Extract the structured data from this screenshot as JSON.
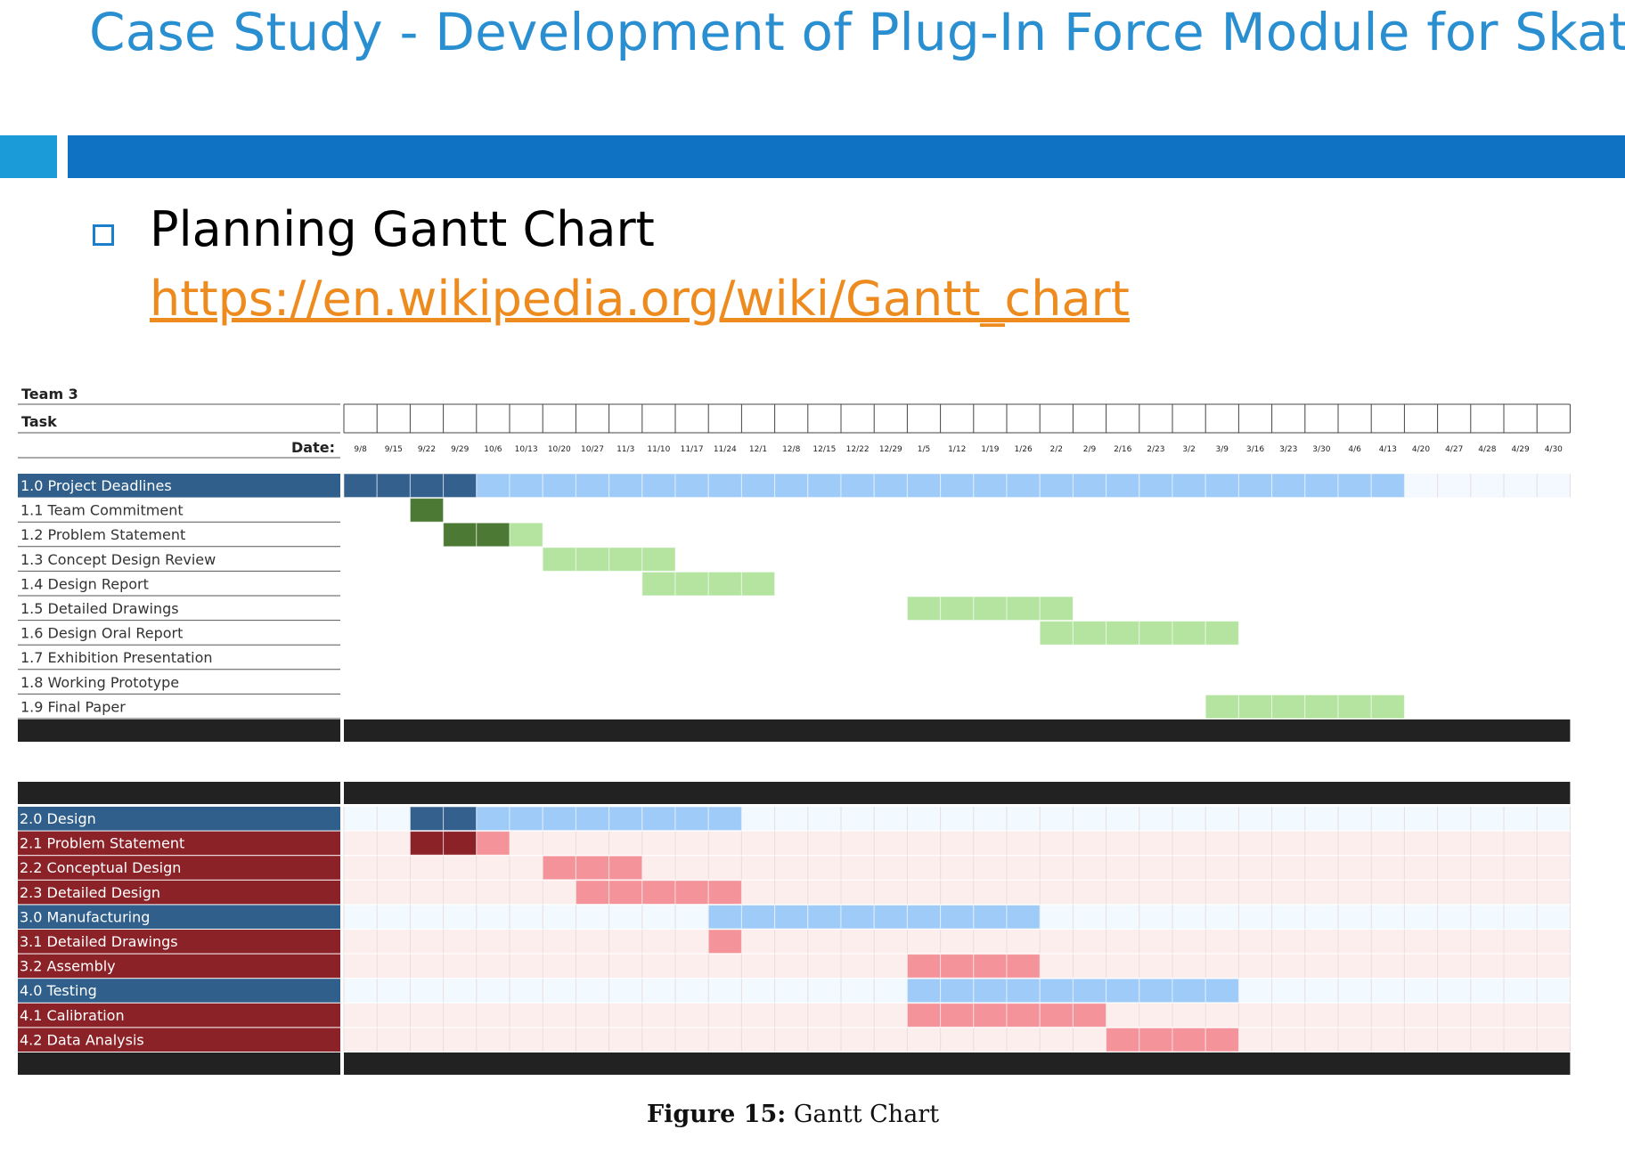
{
  "slide": {
    "title": "Case Study - Development of Plug-In Force Module for Skates",
    "bullet_heading": "Planning Gantt Chart",
    "bullet_link": "https://en.wikipedia.org/wiki/Gantt_chart"
  },
  "caption": {
    "label": "Figure 15:",
    "text": "Gantt Chart"
  },
  "colors": {
    "slide_title": "#2a8fd0",
    "band_light": "#1b9bd7",
    "band_dark": "#1072c2",
    "link": "#ee8b1f",
    "summary_label_bg": "#2f5f8a",
    "summary_done": "#34608e",
    "summary_planned": "#9ecbf7",
    "task_done_green": "#4c7a34",
    "task_planned_green": "#b4e4a0",
    "task_label_red": "#8b2228",
    "task_done_red": "#8b2228",
    "task_planned_red": "#f4939a",
    "separator": "#222222"
  },
  "chart_data": {
    "type": "gantt",
    "team": "Team 3",
    "task_header": "Task",
    "date_header": "Date:",
    "dates": [
      "9/8",
      "9/15",
      "9/22",
      "9/29",
      "10/6",
      "10/13",
      "10/20",
      "10/27",
      "11/3",
      "11/10",
      "11/17",
      "11/24",
      "12/1",
      "12/8",
      "12/15",
      "12/22",
      "12/29",
      "1/5",
      "1/12",
      "1/19",
      "1/26",
      "2/2",
      "2/9",
      "2/16",
      "2/23",
      "3/2",
      "3/9",
      "3/16",
      "3/23",
      "3/30",
      "4/6",
      "4/13",
      "4/20",
      "4/27",
      "4/28",
      "4/29",
      "4/30"
    ],
    "sections": [
      {
        "rows": [
          {
            "label": "1.0 Project Deadlines",
            "kind": "summary",
            "done": [
              "9/8",
              "9/29"
            ],
            "planned": [
              "10/6",
              "4/13"
            ]
          },
          {
            "label": "1.1 Team Commitment",
            "kind": "task",
            "done": [
              "9/22",
              "9/22"
            ]
          },
          {
            "label": "1.2 Problem Statement",
            "kind": "task",
            "done": [
              "9/29",
              "10/6"
            ],
            "planned": [
              "10/13",
              "10/13"
            ]
          },
          {
            "label": "1.3 Concept Design Review",
            "kind": "task",
            "planned": [
              "10/20",
              "11/10"
            ]
          },
          {
            "label": "1.4 Design Report",
            "kind": "task",
            "planned": [
              "11/10",
              "12/1"
            ]
          },
          {
            "label": "1.5 Detailed Drawings",
            "kind": "task",
            "planned": [
              "1/5",
              "2/2"
            ]
          },
          {
            "label": "1.6 Design Oral Report",
            "kind": "task",
            "planned": [
              "2/2",
              "3/9"
            ]
          },
          {
            "label": "1.7 Exhibition Presentation",
            "kind": "task"
          },
          {
            "label": "1.8 Working Prototype",
            "kind": "task"
          },
          {
            "label": "1.9 Final Paper",
            "kind": "task",
            "planned": [
              "3/9",
              "4/13"
            ]
          }
        ]
      },
      {
        "rows": [
          {
            "label": "2.0 Design",
            "kind": "summary",
            "done": [
              "9/22",
              "9/29"
            ],
            "planned": [
              "10/6",
              "11/24"
            ]
          },
          {
            "label": "2.1 Problem Statement",
            "kind": "task",
            "done": [
              "9/22",
              "9/29"
            ],
            "planned": [
              "10/6",
              "10/6"
            ]
          },
          {
            "label": "2.2 Conceptual Design",
            "kind": "task",
            "planned": [
              "10/20",
              "11/3"
            ]
          },
          {
            "label": "2.3 Detailed Design",
            "kind": "task",
            "planned": [
              "10/27",
              "11/24"
            ]
          },
          {
            "label": "3.0 Manufacturing",
            "kind": "summary",
            "planned": [
              "11/24",
              "1/26"
            ]
          },
          {
            "label": "3.1 Detailed Drawings",
            "kind": "task",
            "planned": [
              "11/24",
              "11/24"
            ]
          },
          {
            "label": "3.2 Assembly",
            "kind": "task",
            "planned": [
              "1/5",
              "1/26"
            ]
          },
          {
            "label": "4.0 Testing",
            "kind": "summary",
            "planned": [
              "1/5",
              "3/9"
            ]
          },
          {
            "label": "4.1 Calibration",
            "kind": "task",
            "planned": [
              "1/5",
              "2/9"
            ]
          },
          {
            "label": "4.2 Data Analysis",
            "kind": "task",
            "planned": [
              "2/16",
              "3/9"
            ]
          }
        ]
      }
    ]
  }
}
